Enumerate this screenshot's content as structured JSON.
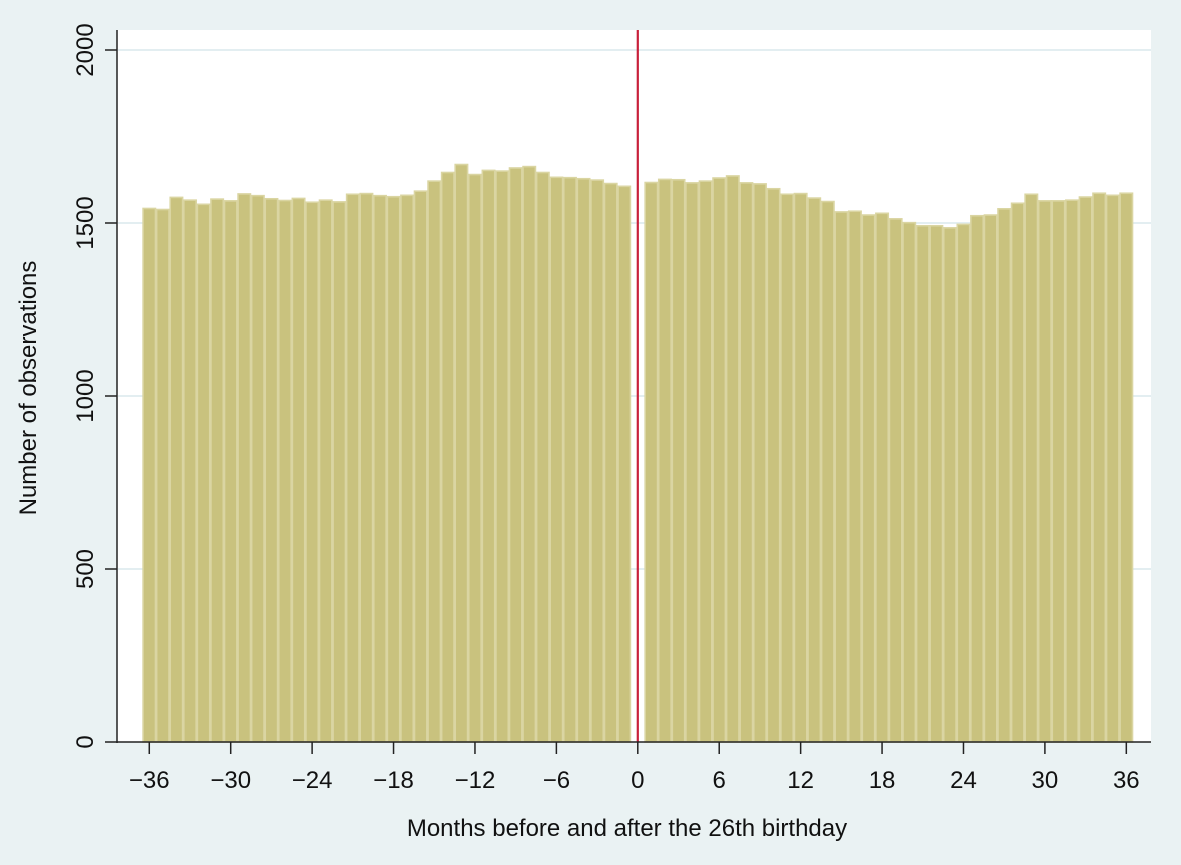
{
  "chart_data": {
    "type": "bar",
    "title": "",
    "xlabel": "Months before and after the 26th birthday",
    "ylabel": "Number of observations",
    "ylim": [
      0,
      2000
    ],
    "xlim": [
      -38.5,
      38.5
    ],
    "grid": true,
    "legend": null,
    "y_ticks": [
      0,
      500,
      1000,
      1500,
      2000
    ],
    "y_tick_labels": [
      "0",
      "500",
      "1000",
      "1500",
      "2000"
    ],
    "x_ticks": [
      -36,
      -30,
      -24,
      -18,
      -12,
      -6,
      0,
      6,
      12,
      18,
      24,
      30,
      36
    ],
    "x_tick_labels": [
      "−36",
      "−30",
      "−24",
      "−18",
      "−12",
      "−6",
      "0",
      "6",
      "12",
      "18",
      "24",
      "30",
      "36"
    ],
    "cutoff_line": {
      "x": 0,
      "color": "#C8203A",
      "label": "26th birthday"
    },
    "x": [
      -36,
      -35,
      -34,
      -33,
      -32,
      -31,
      -30,
      -29,
      -28,
      -27,
      -26,
      -25,
      -24,
      -23,
      -22,
      -21,
      -20,
      -19,
      -18,
      -17,
      -16,
      -15,
      -14,
      -13,
      -12,
      -11,
      -10,
      -9,
      -8,
      -7,
      -6,
      -5,
      -4,
      -3,
      -2,
      -1,
      1,
      2,
      3,
      4,
      5,
      6,
      7,
      8,
      9,
      10,
      11,
      12,
      13,
      14,
      15,
      16,
      17,
      18,
      19,
      20,
      21,
      22,
      23,
      24,
      25,
      26,
      27,
      28,
      29,
      30,
      31,
      32,
      33,
      34,
      35,
      36
    ],
    "values": [
      1542,
      1539,
      1574,
      1566,
      1554,
      1569,
      1564,
      1584,
      1579,
      1570,
      1565,
      1571,
      1560,
      1566,
      1561,
      1583,
      1585,
      1579,
      1576,
      1580,
      1592,
      1621,
      1646,
      1669,
      1640,
      1652,
      1650,
      1659,
      1663,
      1646,
      1632,
      1631,
      1628,
      1624,
      1614,
      1606,
      1617,
      1626,
      1625,
      1616,
      1621,
      1630,
      1636,
      1616,
      1613,
      1599,
      1583,
      1585,
      1572,
      1562,
      1532,
      1534,
      1523,
      1528,
      1512,
      1501,
      1492,
      1492,
      1486,
      1496,
      1521,
      1523,
      1541,
      1557,
      1583,
      1564,
      1564,
      1566,
      1575,
      1586,
      1580,
      1586
    ]
  },
  "colors": {
    "background": "#EAF2F3",
    "plot_background": "#FFFFFF",
    "bar_fill": "#C9C27E",
    "bar_outline": "#DAD5A2",
    "gridline": "#E3EEF1",
    "axis": "#222222",
    "cutoff": "#C8203A"
  }
}
